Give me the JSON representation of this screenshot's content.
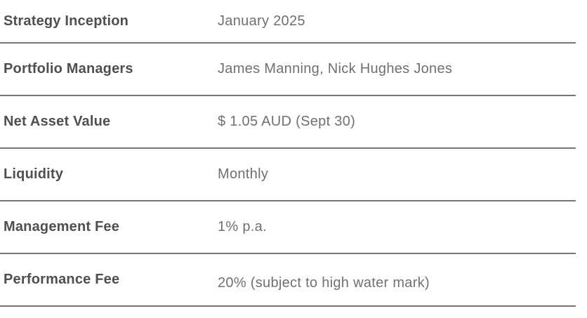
{
  "fact_table": {
    "rows": [
      {
        "label": "Strategy Inception",
        "value": "January 2025"
      },
      {
        "label": "Portfolio Managers",
        "value": "James Manning, Nick Hughes Jones"
      },
      {
        "label": "Net Asset Value",
        "value": "$ 1.05 AUD (Sept 30)"
      },
      {
        "label": "Liquidity",
        "value": "Monthly"
      },
      {
        "label": "Management Fee",
        "value": "1% p.a."
      },
      {
        "label": "Performance Fee",
        "value": "20% (subject to high water mark)"
      }
    ]
  },
  "colors": {
    "label_text": "#4f4f51",
    "value_text": "#707072",
    "divider": "#767676",
    "background": "#ffffff"
  }
}
